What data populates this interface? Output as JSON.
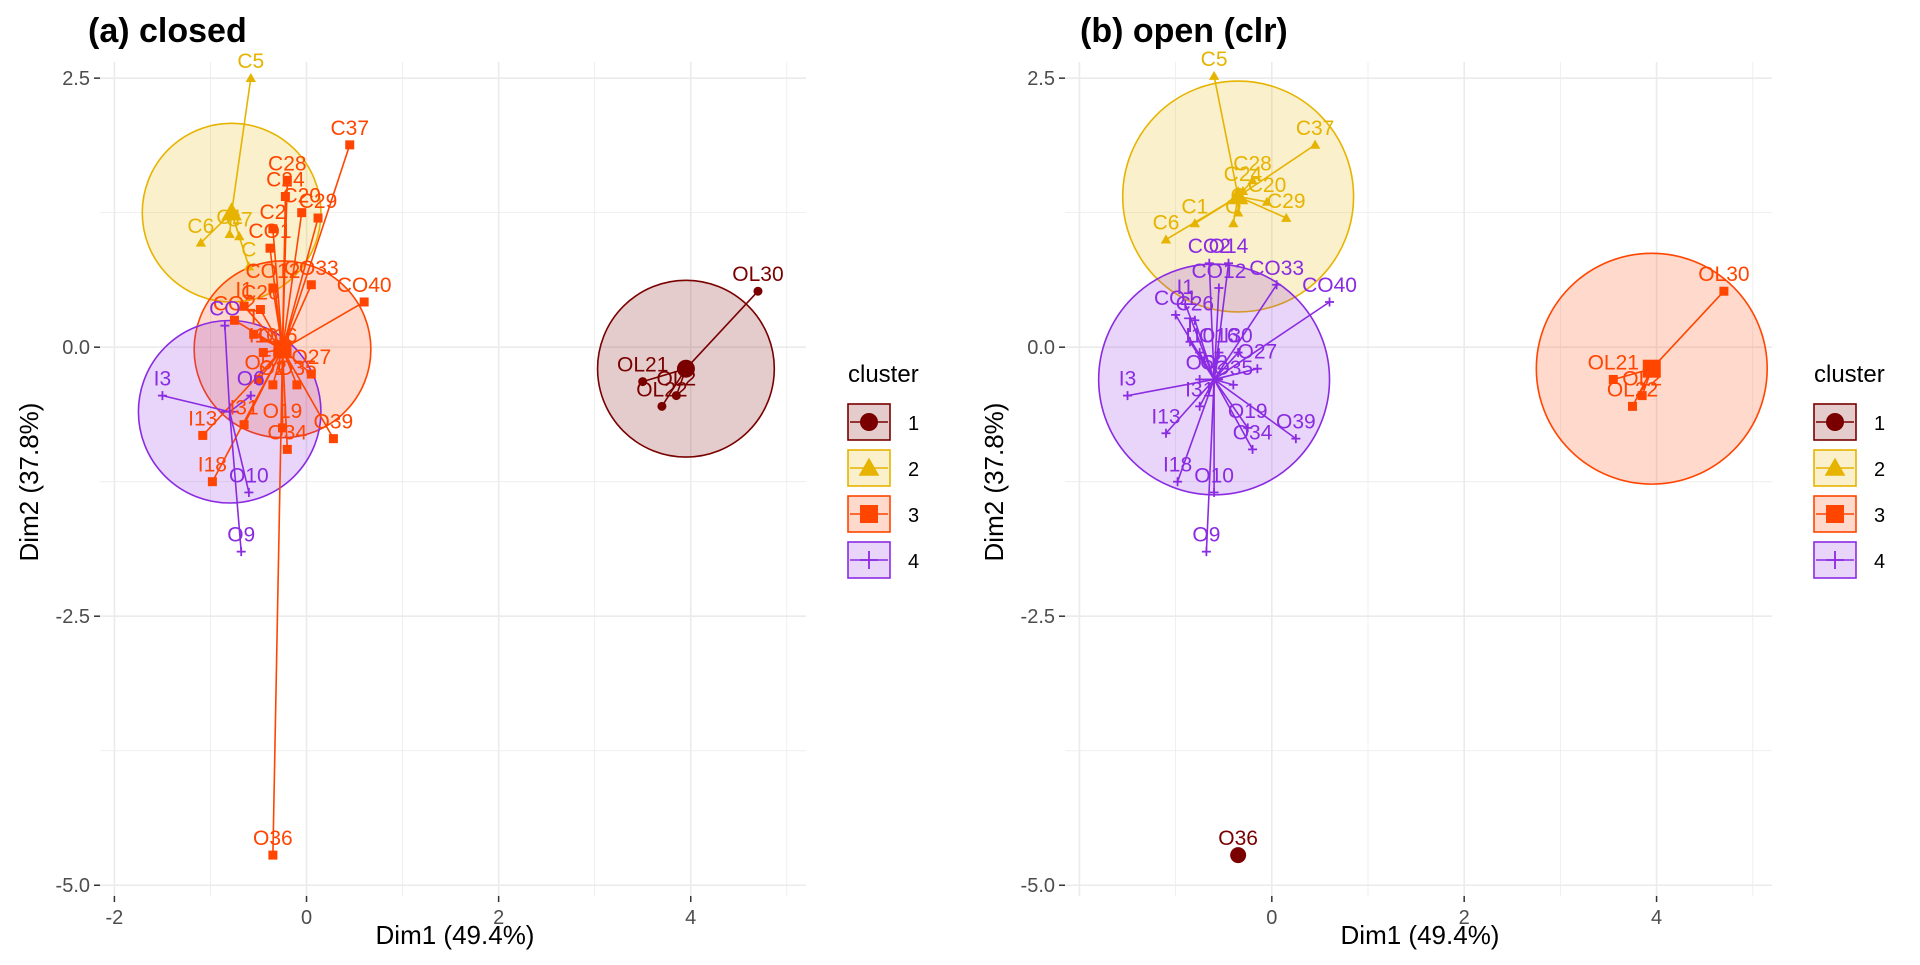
{
  "cluster_colors": {
    "1": "#7A0000",
    "2": "#E6B400",
    "3": "#FF4500",
    "4": "#8A2BE2"
  },
  "chart_data": [
    {
      "type": "scatter",
      "title": "(a) closed",
      "xlabel": "Dim1 (49.4%)",
      "ylabel": "Dim2 (37.8%)",
      "xlim": [
        -2.15,
        5.2
      ],
      "ylim": [
        -5.1,
        2.65
      ],
      "x_ticks": [
        -2,
        0,
        2,
        4
      ],
      "x_tick_labels": [
        "-2",
        "0",
        "2",
        "4"
      ],
      "y_ticks": [
        2.5,
        0,
        -2.5,
        -5
      ],
      "y_tick_labels": [
        "2.5",
        "0.0",
        "-2.5",
        "-5.0"
      ],
      "grid": true,
      "legend_title": "cluster",
      "legend_position": "right",
      "legend": [
        {
          "label": "1",
          "cluster": "1",
          "shape": "circle"
        },
        {
          "label": "2",
          "cluster": "2",
          "shape": "triangle"
        },
        {
          "label": "3",
          "cluster": "3",
          "shape": "square"
        },
        {
          "label": "4",
          "cluster": "4",
          "shape": "plus"
        }
      ],
      "clusters": [
        {
          "id": "1",
          "center": [
            3.95,
            -0.2
          ],
          "radius": 0.92
        },
        {
          "id": "2",
          "center": [
            -0.78,
            1.25
          ],
          "radius": 0.93
        },
        {
          "id": "3",
          "center": [
            -0.25,
            -0.02
          ],
          "radius": 0.92
        },
        {
          "id": "4",
          "center": [
            -0.8,
            -0.6
          ],
          "radius": 0.95
        }
      ],
      "points": [
        {
          "label": "OL30",
          "cluster": "1",
          "x": 4.7,
          "y": 0.52
        },
        {
          "label": "OL21",
          "cluster": "1",
          "x": 3.5,
          "y": -0.32
        },
        {
          "label": "OL22",
          "cluster": "1",
          "x": 3.7,
          "y": -0.55
        },
        {
          "label": "OL2",
          "cluster": "1",
          "x": 3.85,
          "y": -0.45
        },
        {
          "label": "C5",
          "cluster": "2",
          "x": -0.58,
          "y": 2.5
        },
        {
          "label": "C6",
          "cluster": "2",
          "x": -1.1,
          "y": 0.97
        },
        {
          "label": "C1",
          "cluster": "2",
          "x": -0.8,
          "y": 1.05
        },
        {
          "label": "C7",
          "cluster": "2",
          "x": -0.7,
          "y": 1.03
        },
        {
          "label": "C",
          "cluster": "2",
          "x": -0.6,
          "y": 0.75
        },
        {
          "label": "C37",
          "cluster": "3",
          "x": 0.45,
          "y": 1.88
        },
        {
          "label": "C28",
          "cluster": "3",
          "x": -0.2,
          "y": 1.55
        },
        {
          "label": "C24",
          "cluster": "3",
          "x": -0.22,
          "y": 1.4
        },
        {
          "label": "C20",
          "cluster": "3",
          "x": -0.05,
          "y": 1.25
        },
        {
          "label": "C29",
          "cluster": "3",
          "x": 0.12,
          "y": 1.2
        },
        {
          "label": "C2",
          "cluster": "3",
          "x": -0.35,
          "y": 1.1
        },
        {
          "label": "CO1",
          "cluster": "3",
          "x": -0.38,
          "y": 0.92
        },
        {
          "label": "CO33",
          "cluster": "3",
          "x": 0.05,
          "y": 0.58
        },
        {
          "label": "CO12",
          "cluster": "3",
          "x": -0.35,
          "y": 0.55
        },
        {
          "label": "CO40",
          "cluster": "3",
          "x": 0.6,
          "y": 0.42
        },
        {
          "label": "I1",
          "cluster": "3",
          "x": -0.65,
          "y": 0.38
        },
        {
          "label": "CO2",
          "cluster": "3",
          "x": -0.75,
          "y": 0.25
        },
        {
          "label": "C26",
          "cluster": "3",
          "x": -0.48,
          "y": 0.35
        },
        {
          "label": "T",
          "cluster": "3",
          "x": -0.55,
          "y": 0.12
        },
        {
          "label": "I10",
          "cluster": "3",
          "x": -0.45,
          "y": -0.05
        },
        {
          "label": "O16",
          "cluster": "3",
          "x": -0.3,
          "y": -0.05
        },
        {
          "label": "O27",
          "cluster": "3",
          "x": 0.05,
          "y": -0.25
        },
        {
          "label": "O5",
          "cluster": "3",
          "x": -0.5,
          "y": -0.3
        },
        {
          "label": "O2",
          "cluster": "3",
          "x": -0.35,
          "y": -0.35
        },
        {
          "label": "O35",
          "cluster": "3",
          "x": -0.1,
          "y": -0.35
        },
        {
          "label": "O19",
          "cluster": "3",
          "x": -0.25,
          "y": -0.75
        },
        {
          "label": "O34",
          "cluster": "3",
          "x": -0.2,
          "y": -0.95
        },
        {
          "label": "O39",
          "cluster": "3",
          "x": 0.28,
          "y": -0.85
        },
        {
          "label": "I13",
          "cluster": "3",
          "x": -1.08,
          "y": -0.82
        },
        {
          "label": "I31",
          "cluster": "3",
          "x": -0.65,
          "y": -0.72
        },
        {
          "label": "I18",
          "cluster": "3",
          "x": -0.98,
          "y": -1.25
        },
        {
          "label": "O36",
          "cluster": "3",
          "x": -0.35,
          "y": -4.72
        },
        {
          "label": "I3",
          "cluster": "4",
          "x": -1.5,
          "y": -0.45
        },
        {
          "label": "O10",
          "cluster": "4",
          "x": -0.6,
          "y": -1.35
        },
        {
          "label": "O9",
          "cluster": "4",
          "x": -0.68,
          "y": -1.9
        },
        {
          "label": "O6",
          "cluster": "4",
          "x": -0.58,
          "y": -0.45
        },
        {
          "label": "CO",
          "cluster": "4",
          "x": -0.85,
          "y": 0.2
        }
      ]
    },
    {
      "type": "scatter",
      "title": "(b) open (clr)",
      "xlabel": "Dim1 (49.4%)",
      "ylabel": "Dim2 (37.8%)",
      "xlim": [
        -2.15,
        5.2
      ],
      "ylim": [
        -5.1,
        2.65
      ],
      "x_ticks": [
        0,
        2,
        4
      ],
      "x_tick_labels": [
        "0",
        "2",
        "4"
      ],
      "y_ticks": [
        2.5,
        0,
        -2.5,
        -5
      ],
      "y_tick_labels": [
        "2.5",
        "0.0",
        "-2.5",
        "-5.0"
      ],
      "grid": true,
      "legend_title": "cluster",
      "legend_position": "right",
      "legend": [
        {
          "label": "1",
          "cluster": "1",
          "shape": "circle"
        },
        {
          "label": "2",
          "cluster": "2",
          "shape": "triangle"
        },
        {
          "label": "3",
          "cluster": "3",
          "shape": "square"
        },
        {
          "label": "4",
          "cluster": "4",
          "shape": "plus"
        }
      ],
      "clusters": [
        {
          "id": "2",
          "center": [
            -0.35,
            1.4
          ],
          "radius": 1.2
        },
        {
          "id": "3",
          "center": [
            3.95,
            -0.2
          ],
          "radius": 1.2
        },
        {
          "id": "4",
          "center": [
            -0.6,
            -0.3
          ],
          "radius": 1.2
        }
      ],
      "points": [
        {
          "label": "O36",
          "cluster": "1",
          "x": -0.35,
          "y": -4.72,
          "singleton": true
        },
        {
          "label": "C5",
          "cluster": "2",
          "x": -0.6,
          "y": 2.52
        },
        {
          "label": "C37",
          "cluster": "2",
          "x": 0.45,
          "y": 1.88
        },
        {
          "label": "C28",
          "cluster": "2",
          "x": -0.2,
          "y": 1.55
        },
        {
          "label": "C24",
          "cluster": "2",
          "x": -0.3,
          "y": 1.45
        },
        {
          "label": "C20",
          "cluster": "2",
          "x": -0.05,
          "y": 1.35
        },
        {
          "label": "C29",
          "cluster": "2",
          "x": 0.15,
          "y": 1.2
        },
        {
          "label": "C1",
          "cluster": "2",
          "x": -0.8,
          "y": 1.15
        },
        {
          "label": "C6",
          "cluster": "2",
          "x": -1.1,
          "y": 1.0
        },
        {
          "label": "O",
          "cluster": "2",
          "x": -0.4,
          "y": 1.15
        },
        {
          "label": "C",
          "cluster": "2",
          "x": -0.35,
          "y": 1.25
        },
        {
          "label": "OL30",
          "cluster": "3",
          "x": 4.7,
          "y": 0.52
        },
        {
          "label": "OL21",
          "cluster": "3",
          "x": 3.55,
          "y": -0.3
        },
        {
          "label": "OL22",
          "cluster": "3",
          "x": 3.75,
          "y": -0.55
        },
        {
          "label": "OL2",
          "cluster": "3",
          "x": 3.85,
          "y": -0.45
        },
        {
          "label": "CO2",
          "cluster": "4",
          "x": -0.65,
          "y": 0.78
        },
        {
          "label": "O14",
          "cluster": "4",
          "x": -0.45,
          "y": 0.78
        },
        {
          "label": "CO33",
          "cluster": "4",
          "x": 0.05,
          "y": 0.58
        },
        {
          "label": "CO12",
          "cluster": "4",
          "x": -0.55,
          "y": 0.55
        },
        {
          "label": "CO40",
          "cluster": "4",
          "x": 0.6,
          "y": 0.42
        },
        {
          "label": "I1",
          "cluster": "4",
          "x": -0.9,
          "y": 0.4
        },
        {
          "label": "CO1",
          "cluster": "4",
          "x": -1.0,
          "y": 0.3
        },
        {
          "label": "C26",
          "cluster": "4",
          "x": -0.8,
          "y": 0.25
        },
        {
          "label": "T",
          "cluster": "4",
          "x": -0.85,
          "y": 0.05
        },
        {
          "label": "I10",
          "cluster": "4",
          "x": -0.75,
          "y": -0.05
        },
        {
          "label": "O16",
          "cluster": "4",
          "x": -0.55,
          "y": -0.05
        },
        {
          "label": "I30",
          "cluster": "4",
          "x": -0.35,
          "y": -0.05
        },
        {
          "label": "O27",
          "cluster": "4",
          "x": -0.15,
          "y": -0.2
        },
        {
          "label": "O5",
          "cluster": "4",
          "x": -0.75,
          "y": -0.3
        },
        {
          "label": "O2",
          "cluster": "4",
          "x": -0.6,
          "y": -0.3
        },
        {
          "label": "O35",
          "cluster": "4",
          "x": -0.4,
          "y": -0.35
        },
        {
          "label": "I3",
          "cluster": "4",
          "x": -1.5,
          "y": -0.45
        },
        {
          "label": "I31",
          "cluster": "4",
          "x": -0.75,
          "y": -0.55
        },
        {
          "label": "I13",
          "cluster": "4",
          "x": -1.1,
          "y": -0.8
        },
        {
          "label": "O19",
          "cluster": "4",
          "x": -0.25,
          "y": -0.75
        },
        {
          "label": "O34",
          "cluster": "4",
          "x": -0.2,
          "y": -0.95
        },
        {
          "label": "O39",
          "cluster": "4",
          "x": 0.25,
          "y": -0.85
        },
        {
          "label": "I18",
          "cluster": "4",
          "x": -0.98,
          "y": -1.25
        },
        {
          "label": "O10",
          "cluster": "4",
          "x": -0.6,
          "y": -1.35
        },
        {
          "label": "O9",
          "cluster": "4",
          "x": -0.68,
          "y": -1.9
        }
      ]
    }
  ]
}
